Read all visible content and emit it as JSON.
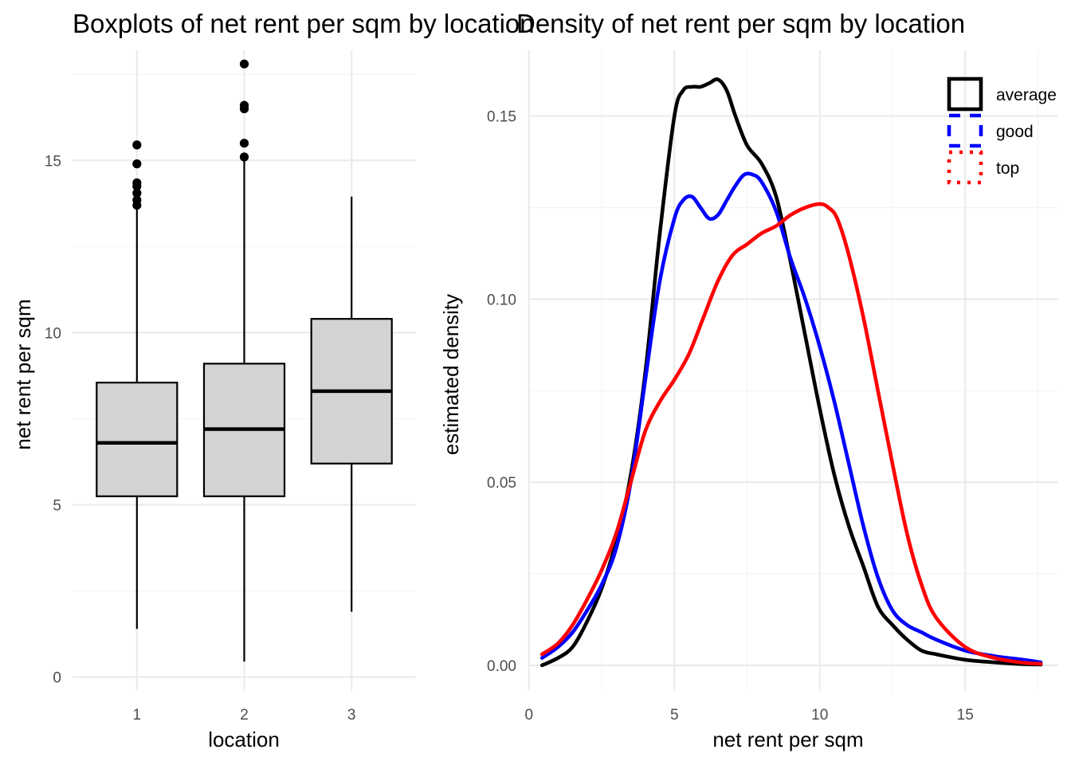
{
  "chart_data": [
    {
      "type": "box",
      "title": "Boxplots of net rent per sqm by location",
      "xlabel": "location",
      "ylabel": "net rent per sqm",
      "categories": [
        "1",
        "2",
        "3"
      ],
      "ylim": [
        -0.4,
        18.2
      ],
      "yticks": [
        0,
        5,
        10,
        15
      ],
      "grid": true,
      "fill_color": "#d3d3d3",
      "boxes": [
        {
          "category": "1",
          "whisker_low": 1.4,
          "q1": 5.25,
          "median": 6.8,
          "q3": 8.55,
          "whisker_high": 13.6,
          "outliers": [
            13.7,
            13.85,
            14.05,
            14.25,
            14.35,
            14.9,
            15.45
          ]
        },
        {
          "category": "2",
          "whisker_low": 0.45,
          "q1": 5.25,
          "median": 7.2,
          "q3": 9.1,
          "whisker_high": 15.0,
          "outliers": [
            15.1,
            15.5,
            16.5,
            16.6,
            17.8
          ]
        },
        {
          "category": "3",
          "whisker_low": 1.9,
          "q1": 6.2,
          "median": 8.3,
          "q3": 10.4,
          "whisker_high": 13.95,
          "outliers": []
        }
      ]
    },
    {
      "type": "line",
      "title": "Density of net rent per sqm by location",
      "xlabel": "net rent per sqm",
      "ylabel": "estimated density",
      "xlim": [
        -0.05,
        18.2
      ],
      "ylim": [
        -0.007,
        0.168
      ],
      "xticks": [
        0,
        5,
        10,
        15
      ],
      "yticks": [
        0.0,
        0.05,
        0.1,
        0.15
      ],
      "ytick_labels": [
        "0.00",
        "0.05",
        "0.10",
        "0.15"
      ],
      "grid": true,
      "legend_position": "top-right",
      "series": [
        {
          "name": "average",
          "color": "#000000",
          "linestyle": "solid",
          "x": [
            0.45,
            1.0,
            1.5,
            2.0,
            2.5,
            3.0,
            3.5,
            4.0,
            4.5,
            5.0,
            5.3,
            5.6,
            5.9,
            6.2,
            6.5,
            6.8,
            7.1,
            7.5,
            8.0,
            8.5,
            9.0,
            9.5,
            10.0,
            10.5,
            11.0,
            11.5,
            12.0,
            12.5,
            13.0,
            13.5,
            14.0,
            15.0,
            16.0,
            17.0,
            17.6
          ],
          "y": [
            0.0,
            0.002,
            0.005,
            0.012,
            0.021,
            0.034,
            0.052,
            0.08,
            0.118,
            0.15,
            0.157,
            0.158,
            0.158,
            0.159,
            0.16,
            0.157,
            0.15,
            0.142,
            0.137,
            0.128,
            0.11,
            0.09,
            0.07,
            0.052,
            0.038,
            0.027,
            0.016,
            0.011,
            0.007,
            0.004,
            0.003,
            0.0015,
            0.0008,
            0.0003,
            0.0002
          ]
        },
        {
          "name": "good",
          "color": "#0000ff",
          "linestyle": "dashed",
          "x": [
            0.45,
            1.0,
            1.5,
            2.0,
            2.5,
            3.0,
            3.5,
            4.0,
            4.5,
            5.0,
            5.3,
            5.6,
            5.9,
            6.2,
            6.5,
            6.8,
            7.1,
            7.4,
            7.7,
            8.0,
            8.5,
            9.0,
            9.5,
            10.0,
            10.5,
            11.0,
            11.5,
            12.0,
            12.5,
            13.0,
            13.5,
            14.0,
            15.0,
            16.0,
            17.0,
            17.6
          ],
          "y": [
            0.002,
            0.005,
            0.009,
            0.015,
            0.022,
            0.032,
            0.05,
            0.078,
            0.105,
            0.122,
            0.127,
            0.128,
            0.125,
            0.122,
            0.123,
            0.127,
            0.131,
            0.134,
            0.134,
            0.132,
            0.124,
            0.111,
            0.1,
            0.087,
            0.072,
            0.055,
            0.038,
            0.024,
            0.015,
            0.011,
            0.009,
            0.007,
            0.004,
            0.0025,
            0.0015,
            0.0008
          ]
        },
        {
          "name": "top",
          "color": "#ff0000",
          "linestyle": "dotted",
          "x": [
            0.45,
            1.0,
            1.5,
            2.0,
            2.5,
            3.0,
            3.5,
            4.0,
            4.5,
            5.0,
            5.5,
            6.0,
            6.5,
            7.0,
            7.5,
            8.0,
            8.5,
            9.0,
            9.5,
            10.0,
            10.3,
            10.6,
            11.0,
            11.5,
            12.0,
            12.5,
            13.0,
            13.5,
            14.0,
            15.0,
            16.0,
            17.0,
            17.6
          ],
          "y": [
            0.003,
            0.006,
            0.011,
            0.018,
            0.026,
            0.036,
            0.05,
            0.064,
            0.072,
            0.078,
            0.085,
            0.095,
            0.105,
            0.112,
            0.115,
            0.118,
            0.12,
            0.123,
            0.125,
            0.126,
            0.125,
            0.122,
            0.112,
            0.095,
            0.075,
            0.055,
            0.036,
            0.022,
            0.013,
            0.005,
            0.002,
            0.0007,
            0.0004
          ]
        }
      ]
    }
  ]
}
